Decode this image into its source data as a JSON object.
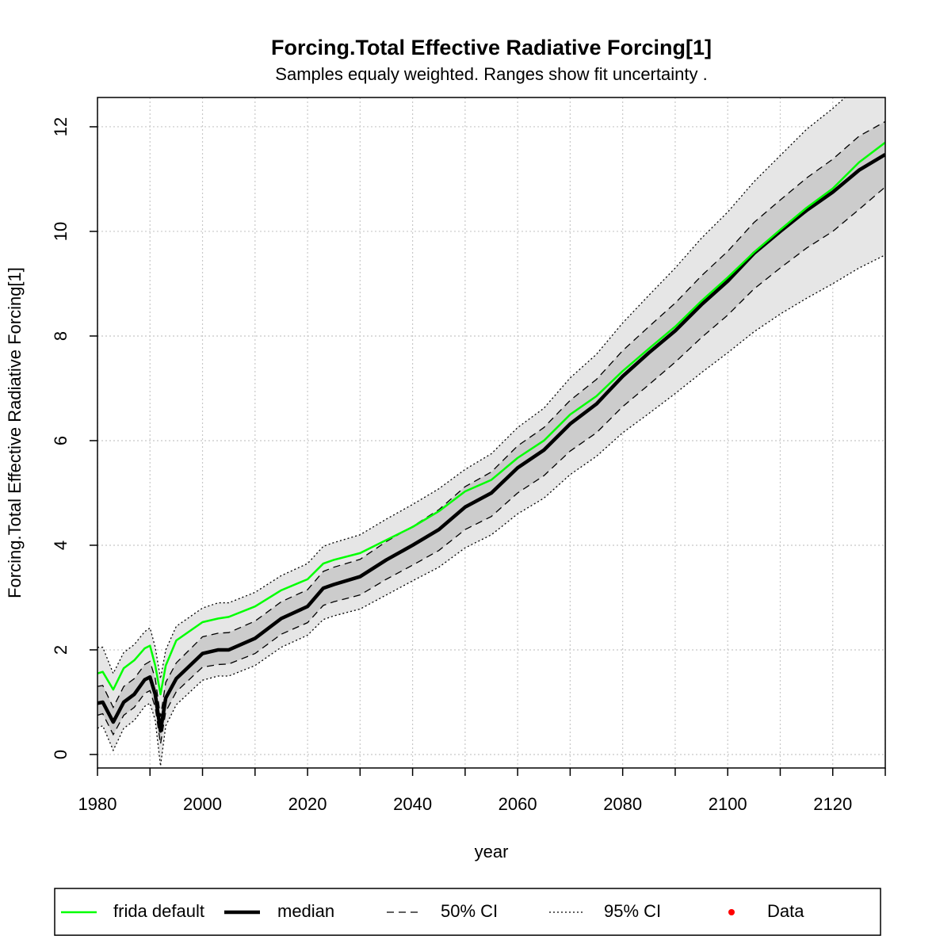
{
  "chart_data": {
    "type": "line",
    "title": "Forcing.Total Effective Radiative Forcing[1]",
    "subtitle": "Samples equaly weighted. Ranges show  fit uncertainty .",
    "x_label": "year",
    "y_label": "Forcing.Total Effective Radiative Forcing[1]",
    "xlim": [
      1980,
      2130
    ],
    "ylim": [
      -0.258,
      12.56
    ],
    "xticks": [
      1980,
      2000,
      2020,
      2040,
      2060,
      2080,
      2100,
      2120
    ],
    "x_minor_ticks": [
      1990,
      2010,
      2030,
      2050,
      2070,
      2090,
      2110,
      2130
    ],
    "yticks": [
      0,
      2,
      4,
      6,
      8,
      10,
      12
    ],
    "grid": true,
    "x": [
      1980,
      1981,
      1983,
      1985,
      1987,
      1989,
      1990,
      1991,
      1992,
      1993,
      1995,
      2000,
      2003,
      2005,
      2010,
      2015,
      2020,
      2023,
      2025,
      2030,
      2035,
      2040,
      2045,
      2050,
      2055,
      2060,
      2065,
      2070,
      2075,
      2080,
      2085,
      2090,
      2095,
      2100,
      2105,
      2110,
      2115,
      2120,
      2125,
      2130
    ],
    "bands": [
      {
        "name": "95% CI",
        "color": "#e6e6e6",
        "line_style": "dotted",
        "lower": [
          0.5,
          0.55,
          0.08,
          0.5,
          0.65,
          0.92,
          0.98,
          0.65,
          -0.22,
          0.55,
          0.95,
          1.42,
          1.5,
          1.5,
          1.7,
          2.05,
          2.28,
          2.58,
          2.65,
          2.78,
          3.05,
          3.32,
          3.58,
          3.95,
          4.2,
          4.6,
          4.9,
          5.35,
          5.7,
          6.15,
          6.52,
          6.9,
          7.3,
          7.68,
          8.08,
          8.42,
          8.72,
          9.0,
          9.3,
          9.55
        ],
        "upper": [
          2.05,
          2.05,
          1.55,
          1.95,
          2.1,
          2.35,
          2.42,
          2.05,
          1.45,
          2.0,
          2.45,
          2.8,
          2.9,
          2.9,
          3.1,
          3.42,
          3.65,
          3.98,
          4.05,
          4.2,
          4.5,
          4.78,
          5.08,
          5.45,
          5.75,
          6.25,
          6.62,
          7.2,
          7.65,
          8.25,
          8.78,
          9.3,
          9.87,
          10.37,
          10.95,
          11.45,
          11.95,
          12.35,
          12.8,
          13.25
        ]
      },
      {
        "name": "50% CI",
        "color": "#cccccc",
        "line_style": "dashed",
        "lower": [
          0.75,
          0.78,
          0.38,
          0.75,
          0.9,
          1.17,
          1.22,
          0.9,
          0.2,
          0.82,
          1.2,
          1.67,
          1.72,
          1.73,
          1.93,
          2.3,
          2.52,
          2.85,
          2.92,
          3.05,
          3.35,
          3.62,
          3.9,
          4.3,
          4.55,
          5.0,
          5.33,
          5.8,
          6.15,
          6.65,
          7.07,
          7.5,
          7.97,
          8.4,
          8.9,
          9.3,
          9.68,
          10.0,
          10.42,
          10.85
        ],
        "upper": [
          1.3,
          1.32,
          0.9,
          1.3,
          1.45,
          1.72,
          1.78,
          1.45,
          0.72,
          1.38,
          1.75,
          2.25,
          2.32,
          2.33,
          2.55,
          2.92,
          3.15,
          3.5,
          3.58,
          3.73,
          4.07,
          4.36,
          4.68,
          5.12,
          5.4,
          5.9,
          6.25,
          6.77,
          7.17,
          7.72,
          8.18,
          8.63,
          9.15,
          9.62,
          10.17,
          10.6,
          11.02,
          11.38,
          11.82,
          12.1
        ]
      }
    ],
    "series": [
      {
        "name": "median",
        "color": "#000000",
        "width": 4.5,
        "values": [
          0.98,
          1.0,
          0.62,
          1.0,
          1.15,
          1.43,
          1.48,
          1.15,
          0.45,
          1.08,
          1.45,
          1.93,
          2.0,
          2.0,
          2.22,
          2.6,
          2.83,
          3.18,
          3.25,
          3.4,
          3.72,
          4.0,
          4.3,
          4.73,
          5.0,
          5.48,
          5.82,
          6.32,
          6.7,
          7.23,
          7.68,
          8.1,
          8.6,
          9.05,
          9.58,
          10.0,
          10.4,
          10.75,
          11.17,
          11.47
        ]
      },
      {
        "name": "frida default",
        "color": "#00ff00",
        "width": 2.5,
        "values": [
          1.55,
          1.58,
          1.24,
          1.65,
          1.8,
          2.03,
          2.08,
          1.7,
          1.15,
          1.7,
          2.18,
          2.53,
          2.6,
          2.63,
          2.83,
          3.14,
          3.35,
          3.65,
          3.72,
          3.85,
          4.1,
          4.35,
          4.65,
          5.03,
          5.25,
          5.67,
          6.0,
          6.5,
          6.85,
          7.33,
          7.76,
          8.18,
          8.67,
          9.12,
          9.6,
          10.03,
          10.45,
          10.82,
          11.32,
          11.7
        ]
      }
    ],
    "data_points": {
      "name": "Data",
      "color": "#ff0000",
      "x": [],
      "values": []
    },
    "legend_order": [
      "frida default",
      "median",
      "50% CI",
      "95% CI",
      "Data"
    ]
  }
}
